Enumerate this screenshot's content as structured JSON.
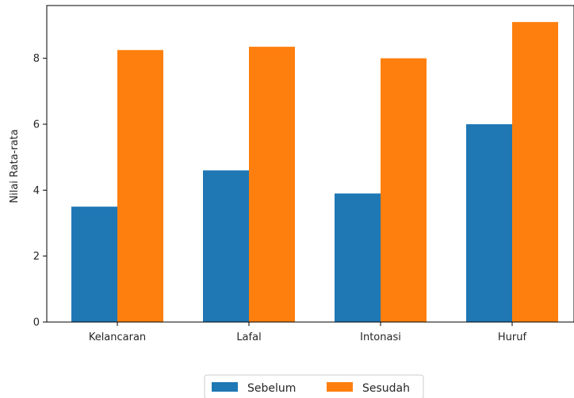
{
  "chart_data": {
    "type": "bar",
    "title": "",
    "xlabel": "",
    "ylabel": "Nilai Rata-rata",
    "categories": [
      "Kelancaran",
      "Lafal",
      "Intonasi",
      "Huruf"
    ],
    "series": [
      {
        "name": "Sebelum",
        "color": "#1f77b4",
        "values": [
          3.5,
          4.6,
          3.9,
          6.0
        ]
      },
      {
        "name": "Sesudah",
        "color": "#ff7f0e",
        "values": [
          8.25,
          8.35,
          8.0,
          9.1
        ]
      }
    ],
    "ylim": [
      0,
      9.6
    ],
    "yticks": [
      "0",
      "2",
      "4",
      "6",
      "8"
    ],
    "grid": false,
    "legend_position": "bottom-center"
  }
}
